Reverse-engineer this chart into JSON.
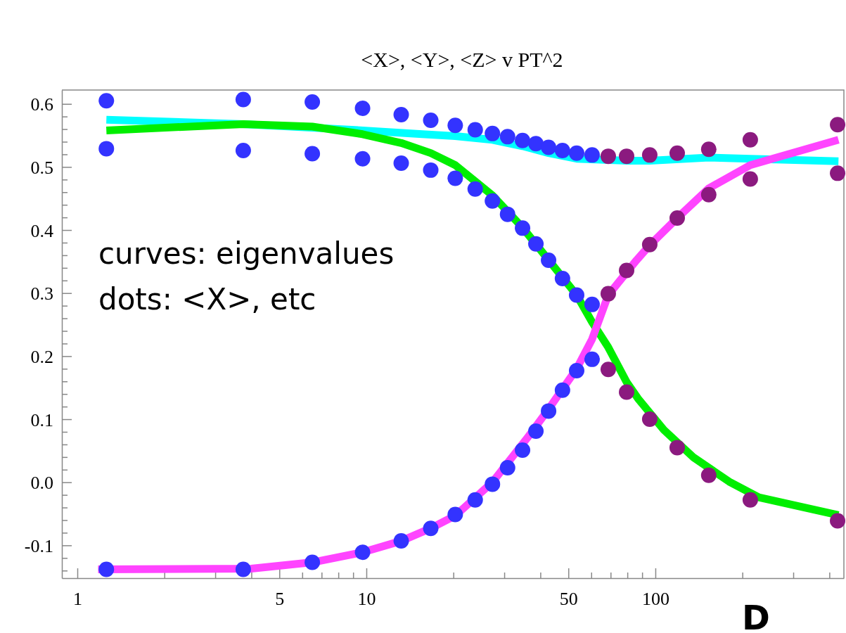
{
  "chart_data": {
    "type": "line",
    "title": "<X>, <Y>, <Z> v PT^2",
    "annotations": [
      "curves: eigenvalues",
      "dots: <X>, etc",
      "D"
    ],
    "log": "x",
    "xlim": [
      0.884,
      449
    ],
    "xticks": [
      1,
      {
        "value": 2,
        "label": null
      },
      {
        "value": 3,
        "label": null
      },
      {
        "value": 4,
        "label": null
      },
      5,
      {
        "value": 6,
        "label": null
      },
      {
        "value": 7,
        "label": null
      },
      {
        "value": 8,
        "label": null
      },
      {
        "value": 9,
        "label": null
      },
      10,
      {
        "value": 20,
        "label": null
      },
      {
        "value": 30,
        "label": null
      },
      {
        "value": 40,
        "label": null
      },
      50,
      {
        "value": 60,
        "label": null
      },
      {
        "value": 70,
        "label": null
      },
      {
        "value": 80,
        "label": null
      },
      {
        "value": 90,
        "label": null
      },
      100,
      {
        "value": 200,
        "label": null
      },
      {
        "value": 300,
        "label": null
      },
      {
        "value": 400,
        "label": null
      }
    ],
    "ylim": [
      -0.152,
      0.622
    ],
    "yticks": [
      {
        "value": -0.14,
        "label": null
      },
      {
        "value": -0.12,
        "label": null
      },
      -0.1,
      {
        "value": -0.08,
        "label": null
      },
      {
        "value": -0.06,
        "label": null
      },
      {
        "value": -0.04,
        "label": null
      },
      {
        "value": -0.02,
        "label": null
      },
      {
        "value": 0,
        "label": "0.0"
      },
      {
        "value": 0.02,
        "label": null
      },
      {
        "value": 0.04,
        "label": null
      },
      {
        "value": 0.06,
        "label": null
      },
      {
        "value": 0.08,
        "label": null
      },
      0.1,
      {
        "value": 0.12,
        "label": null
      },
      {
        "value": 0.14,
        "label": null
      },
      {
        "value": 0.16,
        "label": null
      },
      {
        "value": 0.18,
        "label": null
      },
      0.2,
      {
        "value": 0.22,
        "label": null
      },
      {
        "value": 0.24,
        "label": null
      },
      {
        "value": 0.26,
        "label": null
      },
      {
        "value": 0.28,
        "label": null
      },
      0.3,
      {
        "value": 0.32,
        "label": null
      },
      {
        "value": 0.34,
        "label": null
      },
      {
        "value": 0.36,
        "label": null
      },
      {
        "value": 0.38,
        "label": null
      },
      0.4,
      {
        "value": 0.42,
        "label": null
      },
      {
        "value": 0.44,
        "label": null
      },
      {
        "value": 0.46,
        "label": null
      },
      {
        "value": 0.48,
        "label": null
      },
      0.5,
      {
        "value": 0.52,
        "label": null
      },
      {
        "value": 0.54,
        "label": null
      },
      {
        "value": 0.56,
        "label": null
      },
      {
        "value": 0.58,
        "label": null
      },
      0.6
    ],
    "grid": false,
    "series": [
      {
        "color": "#00ffff",
        "marker": "none",
        "x": [
          1.26,
          3.75,
          9.7,
          15.6,
          20.3,
          27.3,
          34.7,
          42.7,
          53.4,
          80,
          95.6,
          153,
          213,
          430
        ],
        "values": [
          0.575,
          0.568,
          0.558,
          0.552,
          0.549,
          0.543,
          0.533,
          0.522,
          0.513,
          0.51,
          0.51,
          0.515,
          0.513,
          0.509
        ]
      },
      {
        "color": "#00ee00",
        "marker": "none",
        "x": [
          1.26,
          3.75,
          6.5,
          9.7,
          13.2,
          16.7,
          20.3,
          27.3,
          34.7,
          53.4,
          60.4,
          68.7,
          79.5,
          87,
          107,
          135,
          180,
          228,
          430
        ],
        "values": [
          0.558,
          0.568,
          0.564,
          0.552,
          0.538,
          0.522,
          0.503,
          0.455,
          0.404,
          0.297,
          0.254,
          0.214,
          0.159,
          0.133,
          0.083,
          0.04,
          0.001,
          -0.024,
          -0.052
        ]
      },
      {
        "color": "#ff44ff",
        "marker": "none",
        "x": [
          1.18,
          4.0,
          6.5,
          9.7,
          13.2,
          16.7,
          20.3,
          27.3,
          36,
          42.7,
          53.4,
          60.4,
          68.7,
          86,
          95.6,
          119,
          153,
          213,
          430
        ],
        "values": [
          -0.138,
          -0.137,
          -0.127,
          -0.111,
          -0.093,
          -0.073,
          -0.053,
          0.0,
          0.07,
          0.116,
          0.18,
          0.227,
          0.297,
          0.352,
          0.376,
          0.419,
          0.466,
          0.503,
          0.543
        ]
      },
      {
        "type": "scatter",
        "color": "#3333ff",
        "marker": "circle",
        "x": [
          1.26,
          3.75,
          6.5,
          9.7,
          13.2,
          16.7,
          20.3,
          23.8,
          27.3,
          30.8,
          34.7,
          38.6,
          42.7,
          47.7,
          53.4,
          60.4
        ],
        "values": [
          0.605,
          0.607,
          0.603,
          0.593,
          0.583,
          0.574,
          0.566,
          0.559,
          0.553,
          0.548,
          0.542,
          0.537,
          0.531,
          0.526,
          0.522,
          0.519
        ]
      },
      {
        "type": "scatter",
        "color": "#3333ff",
        "marker": "circle",
        "x": [
          1.26,
          3.75,
          6.5,
          9.7,
          13.2,
          16.7,
          20.3,
          23.8,
          27.3,
          30.8,
          34.7,
          38.6,
          42.7,
          47.7,
          53.4,
          60.4
        ],
        "values": [
          0.529,
          0.526,
          0.521,
          0.513,
          0.506,
          0.495,
          0.482,
          0.465,
          0.446,
          0.425,
          0.403,
          0.378,
          0.352,
          0.323,
          0.297,
          0.282
        ]
      },
      {
        "type": "scatter",
        "color": "#3333ff",
        "marker": "circle",
        "x": [
          1.26,
          3.75,
          6.5,
          9.7,
          13.2,
          16.7,
          20.3,
          23.8,
          27.3,
          30.8,
          34.7,
          38.6,
          42.7,
          47.7,
          53.4,
          60.4
        ],
        "values": [
          -0.138,
          -0.138,
          -0.127,
          -0.111,
          -0.093,
          -0.073,
          -0.051,
          -0.028,
          -0.003,
          0.023,
          0.051,
          0.081,
          0.113,
          0.146,
          0.177,
          0.195
        ]
      },
      {
        "type": "scatter",
        "color": "#8b1a7f",
        "marker": "circle",
        "x": [
          68.7,
          79.5,
          95.6,
          119,
          153,
          213,
          427
        ],
        "values": [
          0.517,
          0.517,
          0.519,
          0.522,
          0.528,
          0.543,
          0.567
        ]
      },
      {
        "type": "scatter",
        "color": "#8b1a7f",
        "marker": "circle",
        "x": [
          68.7,
          79.5,
          95.6,
          119,
          153,
          213,
          427
        ],
        "values": [
          0.299,
          0.336,
          0.377,
          0.419,
          0.456,
          0.481,
          0.49
        ]
      },
      {
        "type": "scatter",
        "color": "#8b1a7f",
        "marker": "circle",
        "x": [
          68.7,
          79.5,
          95.6,
          119,
          153,
          213,
          427
        ],
        "values": [
          0.179,
          0.143,
          0.1,
          0.055,
          0.011,
          -0.028,
          -0.061
        ]
      }
    ]
  }
}
